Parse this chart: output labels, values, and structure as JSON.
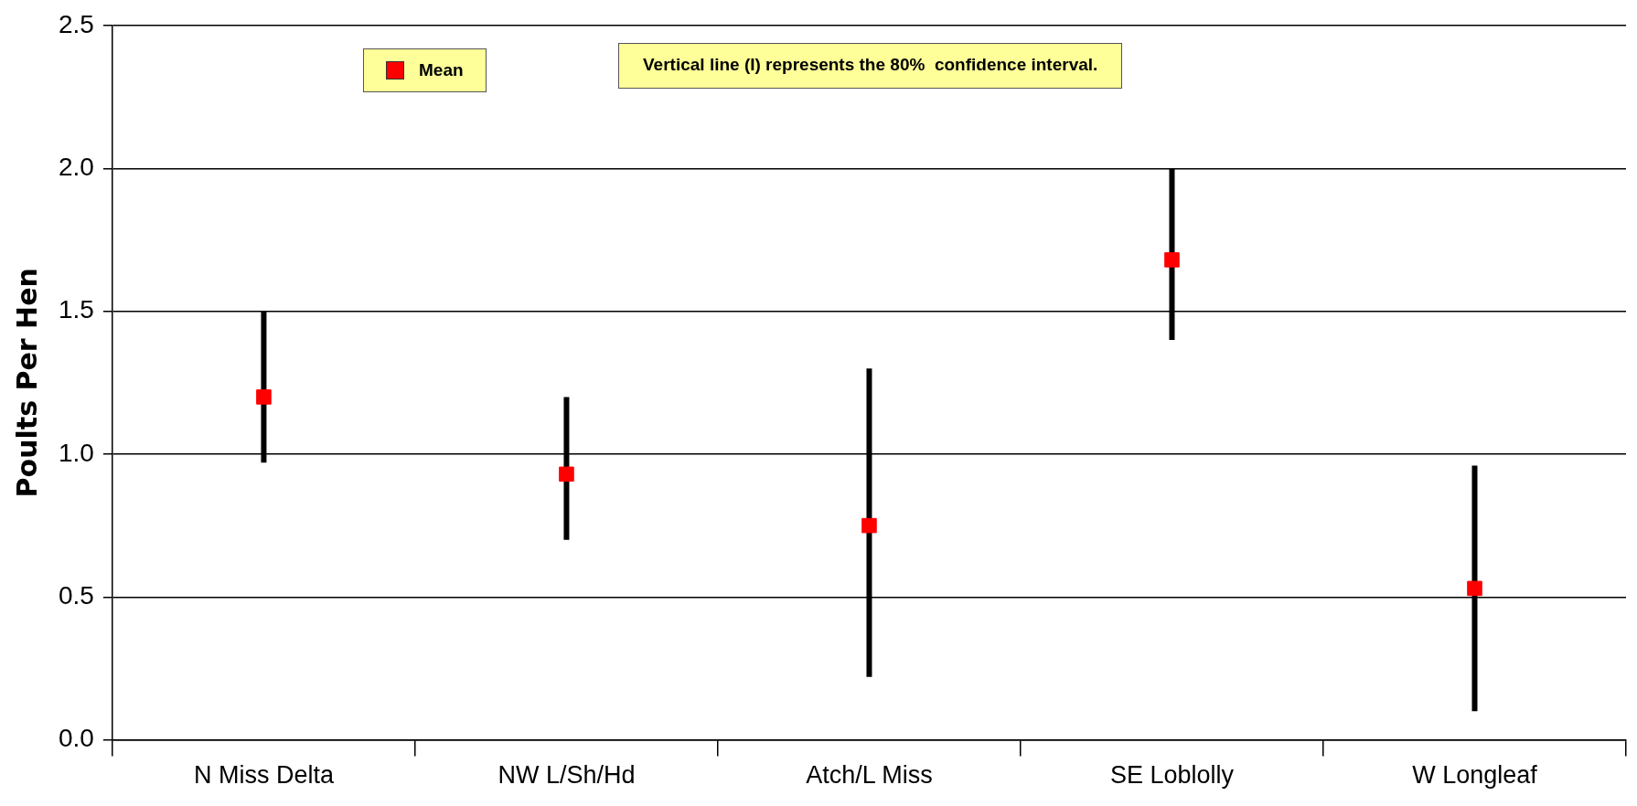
{
  "chart_data": {
    "type": "scatter",
    "ylabel": "Poults Per Hen",
    "categories": [
      "N Miss Delta",
      "NW L/Sh/Hd",
      "Atch/L Miss",
      "SE Loblolly",
      "W Longleaf"
    ],
    "series": [
      {
        "name": "Mean",
        "color": "#ff0000",
        "values": [
          1.2,
          0.93,
          0.75,
          1.68,
          0.53
        ],
        "errors": [
          [
            0.97,
            1.5
          ],
          [
            0.7,
            1.2
          ],
          [
            0.22,
            1.3
          ],
          [
            1.4,
            2.0
          ],
          [
            0.1,
            0.96
          ]
        ]
      }
    ],
    "ylim": [
      0,
      2.5
    ],
    "yticks": [
      {
        "value": 0,
        "label": "0.0"
      },
      {
        "value": 0.5,
        "label": "0.5"
      },
      {
        "value": 1,
        "label": "1.0"
      },
      {
        "value": 1.5,
        "label": "1.5"
      },
      {
        "value": 2,
        "label": "2.0"
      },
      {
        "value": 2.5,
        "label": "2.5"
      }
    ],
    "grid": "y",
    "legend": "top left",
    "marker": "square",
    "annotations": [
      "Vertical line (I) represents the 80%  confidence interval."
    ]
  }
}
